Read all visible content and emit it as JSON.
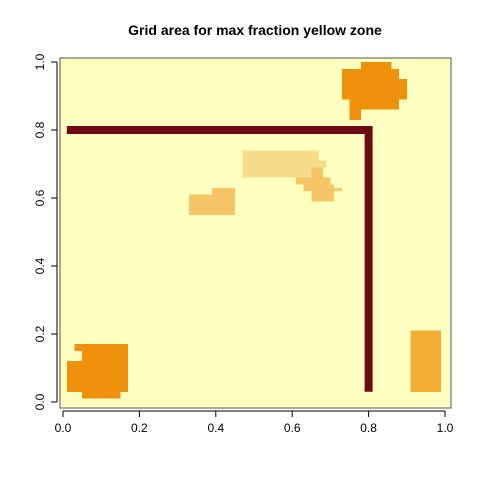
{
  "chart_data": {
    "type": "heatmap",
    "title": "Grid area for max fraction yellow zone",
    "xlabel": "",
    "ylabel": "",
    "xlim": [
      0,
      1
    ],
    "ylim": [
      0,
      1
    ],
    "x_ticks": [
      "0.0",
      "0.2",
      "0.4",
      "0.6",
      "0.8",
      "1.0"
    ],
    "y_ticks": [
      "0.0",
      "0.2",
      "0.4",
      "0.6",
      "0.8",
      "1.0"
    ],
    "grid": false,
    "background_color": "#FFFFBF",
    "zones": [
      {
        "id": "zone-top-right",
        "color": "#F0910D",
        "cells": [
          [
            0.78,
            0.98,
            0.86,
            1.0
          ],
          [
            0.73,
            0.95,
            0.88,
            0.98
          ],
          [
            0.73,
            0.92,
            0.9,
            0.95
          ],
          [
            0.73,
            0.89,
            0.9,
            0.92
          ],
          [
            0.75,
            0.86,
            0.88,
            0.89
          ],
          [
            0.75,
            0.83,
            0.78,
            0.86
          ]
        ]
      },
      {
        "id": "zone-center-light",
        "color": "#F8DC8C",
        "cells": [
          [
            0.47,
            0.66,
            0.67,
            0.74
          ],
          [
            0.67,
            0.69,
            0.69,
            0.71
          ]
        ]
      },
      {
        "id": "zone-center-right",
        "color": "#F5C566",
        "cells": [
          [
            0.65,
            0.66,
            0.68,
            0.69
          ],
          [
            0.61,
            0.64,
            0.7,
            0.66
          ],
          [
            0.63,
            0.62,
            0.71,
            0.64
          ],
          [
            0.65,
            0.59,
            0.71,
            0.62
          ],
          [
            0.71,
            0.62,
            0.73,
            0.63
          ]
        ]
      },
      {
        "id": "zone-center-left",
        "color": "#F5C566",
        "cells": [
          [
            0.33,
            0.55,
            0.45,
            0.61
          ],
          [
            0.39,
            0.61,
            0.45,
            0.63
          ]
        ]
      },
      {
        "id": "zone-bottom-left",
        "color": "#F0910D",
        "cells": [
          [
            0.03,
            0.15,
            0.17,
            0.17
          ],
          [
            0.05,
            0.12,
            0.17,
            0.15
          ],
          [
            0.01,
            0.09,
            0.17,
            0.12
          ],
          [
            0.01,
            0.03,
            0.17,
            0.09
          ],
          [
            0.05,
            0.01,
            0.15,
            0.03
          ]
        ]
      },
      {
        "id": "zone-bottom-right",
        "color": "#F3AD33",
        "cells": [
          [
            0.91,
            0.03,
            0.99,
            0.21
          ]
        ]
      }
    ],
    "path": {
      "color": "#6E0A16",
      "points": [
        [
          0.01,
          0.8
        ],
        [
          0.8,
          0.8
        ],
        [
          0.8,
          0.03
        ]
      ]
    }
  }
}
